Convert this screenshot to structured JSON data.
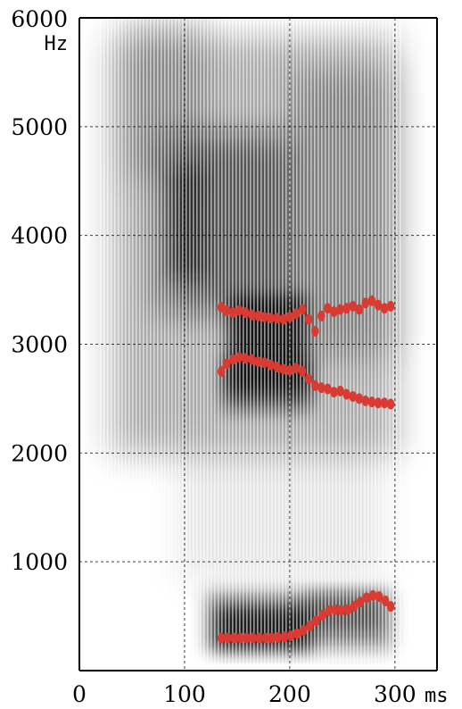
{
  "chart_data": {
    "type": "scatter",
    "subtype": "spectrogram with formant tracks",
    "x_unit": "ms",
    "y_unit": "Hz",
    "xlim": [
      0,
      340
    ],
    "ylim": [
      0,
      6000
    ],
    "x_ticks": [
      0,
      100,
      200,
      300
    ],
    "y_ticks": [
      1000,
      2000,
      3000,
      4000,
      5000,
      6000
    ],
    "grid": true,
    "formant_color": "#d93a32",
    "spectrogram_color": "#222222",
    "series": [
      {
        "x": [
          135,
          141,
          147,
          153,
          159,
          165,
          171,
          177,
          183,
          189,
          195,
          201,
          207,
          213,
          219,
          225,
          231,
          237,
          243,
          249,
          255,
          261,
          267,
          273,
          279,
          285,
          291,
          296
        ],
        "y": [
          300,
          300,
          300,
          300,
          300,
          300,
          300,
          300,
          300,
          305,
          310,
          320,
          340,
          370,
          410,
          460,
          510,
          550,
          560,
          555,
          560,
          590,
          630,
          670,
          690,
          680,
          640,
          590
        ]
      },
      {
        "x": [
          135,
          140,
          146,
          152,
          158,
          164,
          170,
          176,
          182,
          188,
          194,
          200,
          206,
          212,
          218,
          224,
          230,
          236,
          242,
          248,
          254,
          260,
          266,
          272,
          278,
          284,
          290,
          296
        ],
        "y": [
          2750,
          2820,
          2860,
          2880,
          2870,
          2860,
          2840,
          2830,
          2810,
          2790,
          2770,
          2760,
          2780,
          2750,
          2680,
          2620,
          2600,
          2590,
          2560,
          2570,
          2540,
          2520,
          2500,
          2480,
          2470,
          2460,
          2460,
          2450
        ]
      },
      {
        "x": [
          135,
          140,
          146,
          152,
          158,
          164,
          170,
          176,
          182,
          188,
          194,
          200,
          206,
          212,
          218,
          224,
          230,
          236,
          242,
          248,
          254,
          260,
          266,
          272,
          278,
          284,
          290,
          296
        ],
        "y": [
          3340,
          3310,
          3290,
          3310,
          3290,
          3270,
          3260,
          3250,
          3240,
          3240,
          3230,
          3250,
          3280,
          3320,
          3230,
          3120,
          3260,
          3330,
          3300,
          3320,
          3330,
          3350,
          3320,
          3380,
          3400,
          3360,
          3330,
          3350
        ]
      }
    ]
  }
}
